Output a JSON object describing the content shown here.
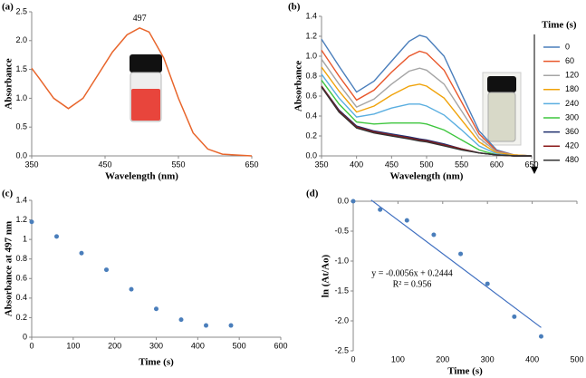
{
  "chart_data": [
    {
      "type": "line",
      "panel_label": "(a)",
      "xlabel": "Wavelength (nm)",
      "ylabel": "Absorbance",
      "color": "#e8652b",
      "x": [
        350,
        360,
        380,
        400,
        420,
        440,
        460,
        480,
        497,
        510,
        530,
        550,
        570,
        590,
        610,
        650
      ],
      "values": [
        1.52,
        1.35,
        1.0,
        0.82,
        1.0,
        1.4,
        1.8,
        2.1,
        2.22,
        2.15,
        1.7,
        1.0,
        0.4,
        0.12,
        0.03,
        0.0
      ],
      "annotations": [
        "497"
      ],
      "xlim": [
        350,
        650
      ],
      "xticks": [
        350,
        450,
        550,
        650
      ],
      "ylim": [
        0,
        2.5
      ],
      "yticks": [
        {
          "value": 0,
          "label": "0.0"
        },
        0.5,
        {
          "value": 1,
          "label": "1.0"
        },
        1.5,
        {
          "value": 2,
          "label": "2.0"
        },
        2.5
      ]
    },
    {
      "type": "line",
      "panel_label": "(b)",
      "xlabel": "Wavelength (nm)",
      "ylabel": "Absorbance",
      "legend_title": "Time (s)",
      "x": [
        350,
        375,
        400,
        425,
        450,
        475,
        490,
        500,
        525,
        550,
        575,
        600,
        625,
        650
      ],
      "series": [
        {
          "name": "0",
          "color": "#4a7ebb",
          "values": [
            1.17,
            0.9,
            0.64,
            0.75,
            0.95,
            1.15,
            1.21,
            1.19,
            1.0,
            0.62,
            0.25,
            0.06,
            0.01,
            0.0
          ]
        },
        {
          "name": "60",
          "color": "#e8572b",
          "values": [
            1.06,
            0.8,
            0.56,
            0.66,
            0.84,
            1.0,
            1.05,
            1.03,
            0.86,
            0.54,
            0.22,
            0.05,
            0.01,
            0.0
          ]
        },
        {
          "name": "120",
          "color": "#a5a5a5",
          "values": [
            0.97,
            0.72,
            0.49,
            0.57,
            0.72,
            0.85,
            0.88,
            0.86,
            0.72,
            0.45,
            0.18,
            0.04,
            0.01,
            0.0
          ]
        },
        {
          "name": "180",
          "color": "#f0a30a",
          "values": [
            0.89,
            0.65,
            0.44,
            0.5,
            0.61,
            0.7,
            0.72,
            0.7,
            0.58,
            0.36,
            0.14,
            0.03,
            0.01,
            0.0
          ]
        },
        {
          "name": "240",
          "color": "#5aaee0",
          "values": [
            0.82,
            0.58,
            0.39,
            0.42,
            0.48,
            0.52,
            0.52,
            0.5,
            0.41,
            0.26,
            0.1,
            0.02,
            0.0,
            0.0
          ]
        },
        {
          "name": "300",
          "color": "#3ec63e",
          "values": [
            0.76,
            0.52,
            0.34,
            0.32,
            0.33,
            0.33,
            0.33,
            0.32,
            0.26,
            0.16,
            0.06,
            0.01,
            0.0,
            0.0
          ]
        },
        {
          "name": "360",
          "color": "#1f2f6e",
          "values": [
            0.7,
            0.46,
            0.3,
            0.25,
            0.22,
            0.19,
            0.17,
            0.16,
            0.12,
            0.07,
            0.03,
            0.01,
            0.0,
            0.0
          ]
        },
        {
          "name": "420",
          "color": "#8b1a1a",
          "values": [
            0.7,
            0.45,
            0.29,
            0.24,
            0.21,
            0.18,
            0.16,
            0.15,
            0.11,
            0.07,
            0.03,
            0.01,
            0.0,
            0.0
          ]
        },
        {
          "name": "480",
          "color": "#333333",
          "values": [
            0.69,
            0.44,
            0.28,
            0.23,
            0.2,
            0.17,
            0.15,
            0.14,
            0.1,
            0.06,
            0.03,
            0.01,
            0.0,
            0.0
          ]
        }
      ],
      "xlim": [
        350,
        650
      ],
      "xticks": [
        350,
        400,
        450,
        500,
        550,
        600,
        650
      ],
      "ylim": [
        0,
        1.4
      ],
      "yticks": [
        {
          "value": 0,
          "label": "0.0"
        },
        0.2,
        0.4,
        0.6,
        0.8,
        {
          "value": 1,
          "label": "1.0"
        },
        1.2,
        1.4
      ]
    },
    {
      "type": "scatter",
      "panel_label": "(c)",
      "xlabel": "Time (s)",
      "ylabel": "Absorbance at 497 nm",
      "color": "#4a7ebb",
      "x": [
        0,
        60,
        120,
        180,
        240,
        300,
        360,
        420,
        480
      ],
      "values": [
        1.18,
        1.03,
        0.86,
        0.69,
        0.49,
        0.29,
        0.18,
        0.12,
        0.12
      ],
      "xlim": [
        0,
        600
      ],
      "xticks": [
        0,
        100,
        200,
        300,
        400,
        500,
        600
      ],
      "ylim": [
        0,
        1.4
      ],
      "yticks": [
        0,
        0.2,
        0.4,
        0.6,
        0.8,
        1,
        1.2,
        1.4
      ]
    },
    {
      "type": "scatter",
      "panel_label": "(d)",
      "xlabel": "Time (s)",
      "ylabel": "ln (At/Ao)",
      "color": "#4a7ebb",
      "x": [
        0,
        60,
        120,
        180,
        240,
        300,
        360,
        420
      ],
      "values": [
        0,
        -0.14,
        -0.32,
        -0.56,
        -0.88,
        -1.38,
        -1.93,
        -2.26
      ],
      "trendline": {
        "color": "#3f6fc0",
        "x": [
          40,
          420
        ],
        "values": [
          0.02,
          -2.11
        ]
      },
      "annotations": [
        "y = -0.0056x + 0.2444",
        "R² = 0.956"
      ],
      "xlim": [
        0,
        500
      ],
      "xticks": [
        0,
        100,
        200,
        300,
        400,
        500
      ],
      "ylim": [
        -2.5,
        0
      ],
      "yticks": [
        {
          "value": 0,
          "label": "0.0"
        },
        -0.5,
        {
          "value": -1,
          "label": "-1.0"
        },
        -1.5,
        {
          "value": -2,
          "label": "-2.0"
        },
        -2.5
      ]
    }
  ]
}
